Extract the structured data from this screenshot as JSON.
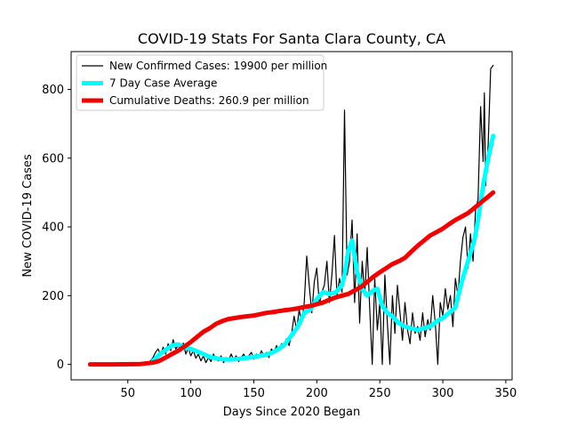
{
  "chart_data": {
    "type": "line",
    "title": "COVID-19 Stats For Santa Clara County, CA",
    "xlabel": "Days Since 2020 Began",
    "ylabel": "New COVID-19 Cases",
    "xlim": [
      5,
      355
    ],
    "ylim": [
      -45,
      910
    ],
    "xticks": [
      50,
      100,
      150,
      200,
      250,
      300,
      350
    ],
    "yticks": [
      0,
      200,
      400,
      600,
      800
    ],
    "grid": false,
    "legend_position": "top-left",
    "series": [
      {
        "name": "New Confirmed Cases: 19900 per million",
        "color": "#000000",
        "points": [
          [
            20,
            0
          ],
          [
            30,
            0
          ],
          [
            40,
            0
          ],
          [
            50,
            1
          ],
          [
            60,
            2
          ],
          [
            65,
            4
          ],
          [
            68,
            10
          ],
          [
            70,
            20
          ],
          [
            72,
            35
          ],
          [
            74,
            45
          ],
          [
            76,
            28
          ],
          [
            78,
            50
          ],
          [
            80,
            30
          ],
          [
            82,
            60
          ],
          [
            84,
            40
          ],
          [
            86,
            72
          ],
          [
            88,
            45
          ],
          [
            90,
            55
          ],
          [
            92,
            38
          ],
          [
            94,
            62
          ],
          [
            96,
            30
          ],
          [
            98,
            48
          ],
          [
            100,
            25
          ],
          [
            102,
            40
          ],
          [
            104,
            18
          ],
          [
            106,
            30
          ],
          [
            108,
            10
          ],
          [
            110,
            25
          ],
          [
            112,
            5
          ],
          [
            114,
            20
          ],
          [
            116,
            8
          ],
          [
            118,
            30
          ],
          [
            120,
            15
          ],
          [
            122,
            10
          ],
          [
            124,
            25
          ],
          [
            126,
            5
          ],
          [
            128,
            20
          ],
          [
            130,
            12
          ],
          [
            132,
            30
          ],
          [
            134,
            15
          ],
          [
            136,
            25
          ],
          [
            138,
            8
          ],
          [
            140,
            20
          ],
          [
            142,
            30
          ],
          [
            144,
            15
          ],
          [
            146,
            25
          ],
          [
            148,
            35
          ],
          [
            150,
            15
          ],
          [
            152,
            30
          ],
          [
            154,
            20
          ],
          [
            156,
            40
          ],
          [
            158,
            25
          ],
          [
            160,
            35
          ],
          [
            162,
            20
          ],
          [
            164,
            45
          ],
          [
            166,
            35
          ],
          [
            168,
            55
          ],
          [
            170,
            40
          ],
          [
            172,
            60
          ],
          [
            174,
            50
          ],
          [
            176,
            75
          ],
          [
            178,
            55
          ],
          [
            180,
            90
          ],
          [
            182,
            140
          ],
          [
            184,
            100
          ],
          [
            186,
            160
          ],
          [
            188,
            120
          ],
          [
            190,
            180
          ],
          [
            192,
            315
          ],
          [
            194,
            230
          ],
          [
            196,
            150
          ],
          [
            198,
            240
          ],
          [
            200,
            280
          ],
          [
            202,
            175
          ],
          [
            204,
            210
          ],
          [
            206,
            230
          ],
          [
            208,
            300
          ],
          [
            210,
            180
          ],
          [
            212,
            260
          ],
          [
            214,
            375
          ],
          [
            216,
            200
          ],
          [
            218,
            250
          ],
          [
            220,
            210
          ],
          [
            222,
            740
          ],
          [
            224,
            260
          ],
          [
            226,
            300
          ],
          [
            228,
            420
          ],
          [
            230,
            180
          ],
          [
            232,
            380
          ],
          [
            234,
            120
          ],
          [
            236,
            300
          ],
          [
            238,
            200
          ],
          [
            240,
            340
          ],
          [
            242,
            160
          ],
          [
            244,
            0
          ],
          [
            246,
            250
          ],
          [
            248,
            100
          ],
          [
            250,
            180
          ],
          [
            252,
            0
          ],
          [
            254,
            260
          ],
          [
            256,
            120
          ],
          [
            258,
            0
          ],
          [
            260,
            200
          ],
          [
            262,
            90
          ],
          [
            264,
            230
          ],
          [
            266,
            150
          ],
          [
            268,
            70
          ],
          [
            270,
            180
          ],
          [
            272,
            100
          ],
          [
            274,
            60
          ],
          [
            276,
            150
          ],
          [
            278,
            90
          ],
          [
            280,
            110
          ],
          [
            282,
            70
          ],
          [
            284,
            150
          ],
          [
            286,
            80
          ],
          [
            288,
            130
          ],
          [
            290,
            100
          ],
          [
            292,
            200
          ],
          [
            294,
            120
          ],
          [
            296,
            0
          ],
          [
            298,
            180
          ],
          [
            300,
            140
          ],
          [
            302,
            220
          ],
          [
            304,
            160
          ],
          [
            306,
            200
          ],
          [
            308,
            110
          ],
          [
            310,
            250
          ],
          [
            312,
            200
          ],
          [
            314,
            300
          ],
          [
            316,
            370
          ],
          [
            318,
            400
          ],
          [
            320,
            280
          ],
          [
            322,
            380
          ],
          [
            324,
            300
          ],
          [
            326,
            450
          ],
          [
            328,
            480
          ],
          [
            330,
            750
          ],
          [
            332,
            590
          ],
          [
            333,
            790
          ],
          [
            334,
            520
          ],
          [
            336,
            640
          ],
          [
            338,
            860
          ],
          [
            340,
            870
          ]
        ]
      },
      {
        "name": "7 Day Case Average",
        "color": "#00ffff",
        "points": [
          [
            70,
            10
          ],
          [
            75,
            28
          ],
          [
            80,
            42
          ],
          [
            85,
            55
          ],
          [
            90,
            58
          ],
          [
            95,
            50
          ],
          [
            100,
            45
          ],
          [
            105,
            38
          ],
          [
            110,
            30
          ],
          [
            115,
            22
          ],
          [
            120,
            18
          ],
          [
            125,
            15
          ],
          [
            130,
            14
          ],
          [
            135,
            15
          ],
          [
            140,
            17
          ],
          [
            145,
            19
          ],
          [
            150,
            22
          ],
          [
            155,
            25
          ],
          [
            160,
            28
          ],
          [
            165,
            35
          ],
          [
            170,
            45
          ],
          [
            175,
            60
          ],
          [
            180,
            85
          ],
          [
            185,
            110
          ],
          [
            190,
            150
          ],
          [
            195,
            160
          ],
          [
            200,
            190
          ],
          [
            205,
            210
          ],
          [
            210,
            205
          ],
          [
            215,
            210
          ],
          [
            220,
            230
          ],
          [
            222,
            260
          ],
          [
            225,
            330
          ],
          [
            228,
            360
          ],
          [
            232,
            270
          ],
          [
            236,
            220
          ],
          [
            240,
            200
          ],
          [
            245,
            215
          ],
          [
            248,
            220
          ],
          [
            252,
            170
          ],
          [
            256,
            150
          ],
          [
            260,
            140
          ],
          [
            265,
            120
          ],
          [
            270,
            110
          ],
          [
            275,
            105
          ],
          [
            280,
            100
          ],
          [
            285,
            105
          ],
          [
            290,
            110
          ],
          [
            295,
            125
          ],
          [
            300,
            135
          ],
          [
            305,
            150
          ],
          [
            310,
            165
          ],
          [
            315,
            240
          ],
          [
            320,
            300
          ],
          [
            325,
            360
          ],
          [
            328,
            420
          ],
          [
            332,
            520
          ],
          [
            336,
            600
          ],
          [
            340,
            665
          ]
        ]
      },
      {
        "name": "Cumulative Deaths: 260.9 per million",
        "color": "#ee0000",
        "points": [
          [
            20,
            0
          ],
          [
            40,
            0
          ],
          [
            60,
            1
          ],
          [
            70,
            5
          ],
          [
            75,
            10
          ],
          [
            80,
            20
          ],
          [
            85,
            30
          ],
          [
            90,
            40
          ],
          [
            95,
            52
          ],
          [
            100,
            65
          ],
          [
            105,
            80
          ],
          [
            110,
            95
          ],
          [
            115,
            105
          ],
          [
            120,
            118
          ],
          [
            125,
            126
          ],
          [
            130,
            132
          ],
          [
            135,
            135
          ],
          [
            140,
            138
          ],
          [
            145,
            140
          ],
          [
            150,
            142
          ],
          [
            155,
            146
          ],
          [
            160,
            150
          ],
          [
            165,
            152
          ],
          [
            170,
            155
          ],
          [
            175,
            158
          ],
          [
            180,
            160
          ],
          [
            185,
            163
          ],
          [
            190,
            167
          ],
          [
            195,
            170
          ],
          [
            200,
            175
          ],
          [
            205,
            180
          ],
          [
            210,
            188
          ],
          [
            215,
            195
          ],
          [
            220,
            200
          ],
          [
            225,
            205
          ],
          [
            230,
            215
          ],
          [
            235,
            225
          ],
          [
            240,
            240
          ],
          [
            245,
            255
          ],
          [
            250,
            268
          ],
          [
            255,
            280
          ],
          [
            260,
            292
          ],
          [
            265,
            300
          ],
          [
            270,
            310
          ],
          [
            275,
            328
          ],
          [
            280,
            345
          ],
          [
            285,
            360
          ],
          [
            290,
            375
          ],
          [
            295,
            385
          ],
          [
            300,
            395
          ],
          [
            305,
            408
          ],
          [
            310,
            420
          ],
          [
            315,
            430
          ],
          [
            320,
            440
          ],
          [
            325,
            455
          ],
          [
            330,
            470
          ],
          [
            335,
            485
          ],
          [
            340,
            500
          ]
        ]
      }
    ]
  }
}
